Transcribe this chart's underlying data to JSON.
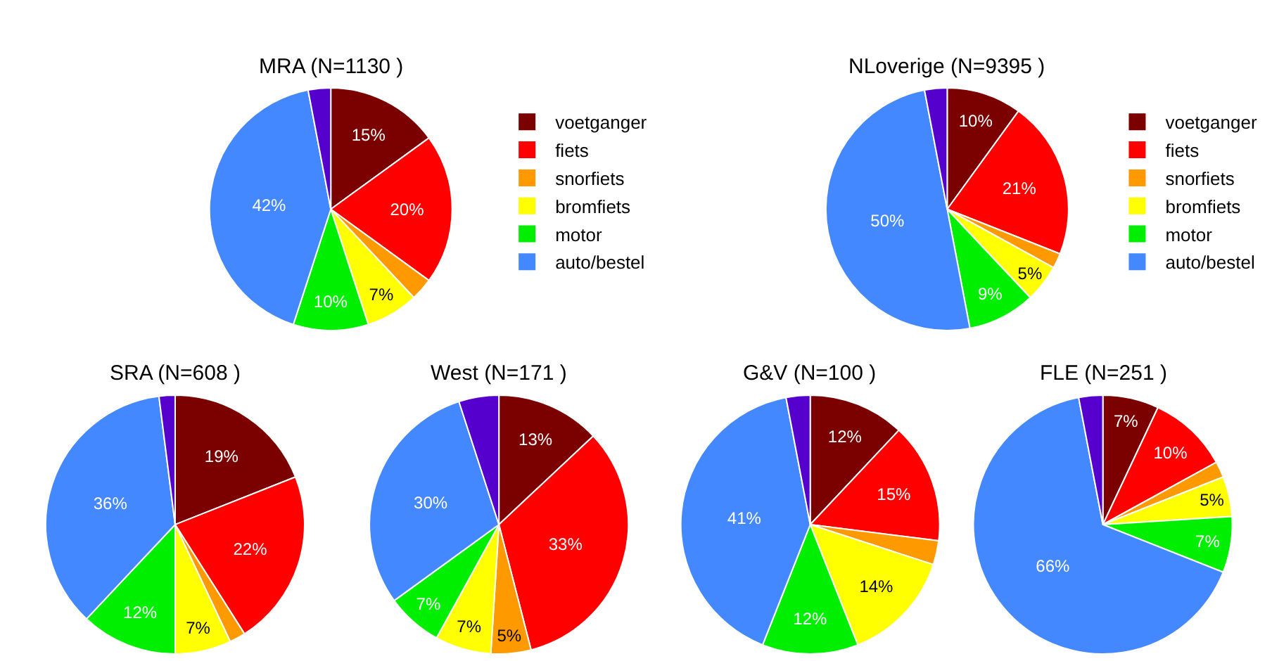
{
  "chart_data": [
    {
      "type": "pie",
      "title": "MRA (N=1130 )",
      "categories": [
        "voetganger",
        "fiets",
        "snorfiets",
        "bromfiets",
        "motor",
        "auto/bestel",
        null
      ],
      "values": [
        15,
        20,
        3,
        7,
        10,
        42,
        3
      ],
      "colors": [
        "#7b0000",
        "#ff0000",
        "#ff9900",
        "#ffff00",
        "#00ee00",
        "#4488ff",
        "#5500cc"
      ],
      "value_labels": [
        "15%",
        "20%",
        null,
        "7%",
        "10%",
        "42%",
        null
      ],
      "legend": "right"
    },
    {
      "type": "pie",
      "title": "NLoverige (N=9395 )",
      "categories": [
        "voetganger",
        "fiets",
        "snorfiets",
        "bromfiets",
        "motor",
        "auto/bestel",
        null
      ],
      "values": [
        10,
        21,
        2,
        5,
        9,
        50,
        3
      ],
      "colors": [
        "#7b0000",
        "#ff0000",
        "#ff9900",
        "#ffff00",
        "#00ee00",
        "#4488ff",
        "#5500cc"
      ],
      "value_labels": [
        "10%",
        "21%",
        null,
        "5%",
        "9%",
        "50%",
        null
      ],
      "legend": "right"
    },
    {
      "type": "pie",
      "title": "SRA (N=608 )",
      "categories": [
        null,
        null,
        null,
        null,
        null,
        null,
        null
      ],
      "values": [
        19,
        22,
        2,
        7,
        12,
        36,
        2
      ],
      "colors": [
        "#7b0000",
        "#ff0000",
        "#ff9900",
        "#ffff00",
        "#00ee00",
        "#4488ff",
        "#5500cc"
      ],
      "value_labels": [
        "19%",
        "22%",
        null,
        "7%",
        "12%",
        "36%",
        null
      ]
    },
    {
      "type": "pie",
      "title": "West (N=171 )",
      "categories": [
        null,
        null,
        null,
        null,
        null,
        null,
        null
      ],
      "values": [
        13,
        33,
        5,
        7,
        7,
        30,
        5
      ],
      "colors": [
        "#7b0000",
        "#ff0000",
        "#ff9900",
        "#ffff00",
        "#00ee00",
        "#4488ff",
        "#5500cc"
      ],
      "value_labels": [
        "13%",
        "33%",
        "5%",
        "7%",
        "7%",
        "30%",
        null
      ]
    },
    {
      "type": "pie",
      "title": "G&V (N=100 )",
      "categories": [
        null,
        null,
        null,
        null,
        null,
        null,
        null
      ],
      "values": [
        12,
        15,
        3,
        14,
        12,
        41,
        3
      ],
      "colors": [
        "#7b0000",
        "#ff0000",
        "#ff9900",
        "#ffff00",
        "#00ee00",
        "#4488ff",
        "#5500cc"
      ],
      "value_labels": [
        "12%",
        "15%",
        null,
        "14%",
        "12%",
        "41%",
        null
      ]
    },
    {
      "type": "pie",
      "title": "FLE (N=251 )",
      "categories": [
        null,
        null,
        null,
        null,
        null,
        null,
        null
      ],
      "values": [
        7,
        10,
        2,
        5,
        7,
        66,
        3
      ],
      "colors": [
        "#7b0000",
        "#ff0000",
        "#ff9900",
        "#ffff00",
        "#00ee00",
        "#4488ff",
        "#5500cc"
      ],
      "value_labels": [
        "7%",
        "10%",
        null,
        "5%",
        "7%",
        "66%",
        null
      ]
    }
  ]
}
